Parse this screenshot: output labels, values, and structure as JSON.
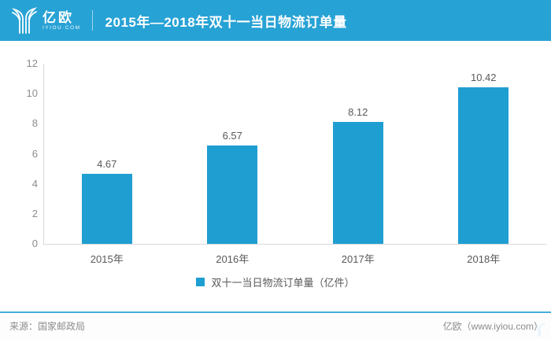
{
  "header": {
    "brand": "亿欧",
    "brand_sub": "IYIOU·COM",
    "title": "2015年—2018年双十一当日物流订单量"
  },
  "chart_data": {
    "type": "bar",
    "title": "2015年—2018年双十一当日物流订单量",
    "categories": [
      "2015年",
      "2016年",
      "2017年",
      "2018年"
    ],
    "values": [
      4.67,
      6.57,
      8.12,
      10.42
    ],
    "legend": "双十一当日物流订单量（亿件）",
    "legend_position": "bottom",
    "xlabel": "",
    "ylabel": "",
    "ylim": [
      0,
      12
    ],
    "yticks": [
      0,
      2,
      4,
      6,
      8,
      10,
      12
    ],
    "grid": false,
    "bar_color": "#1f9ed2"
  },
  "footer": {
    "source": "来源：国家邮政局",
    "credit": "亿欧（www.iyiou.com）"
  },
  "colors": {
    "header_bg": "#27a2d5",
    "accent": "#1f9ed2",
    "axis": "#d8d8d8",
    "footer_line": "#45aedb",
    "tick_text": "#8c8c8c",
    "label_text": "#595959"
  }
}
